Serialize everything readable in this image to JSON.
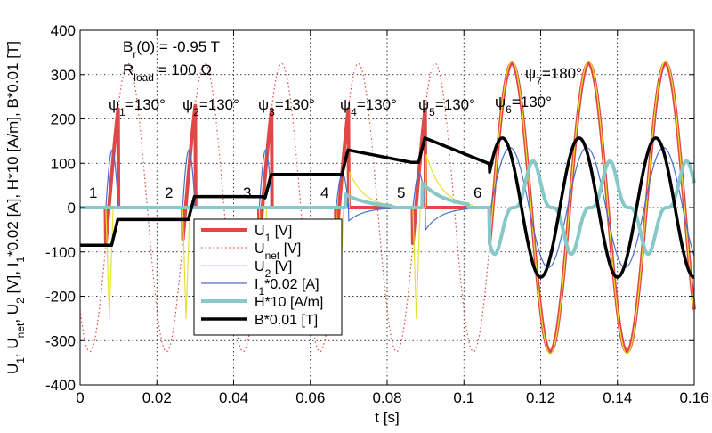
{
  "chart_data": {
    "type": "line",
    "xlabel": "t [s]",
    "ylabel": "U1, Unet, U2 [V], I1*0.02 [A], H*10 [A/m], B*0.01 [T]",
    "ylabel_parts": [
      {
        "text": "U",
        "sub": "1"
      },
      {
        "text": ", U",
        "sub": "net"
      },
      {
        "text": ", U",
        "sub": "2"
      },
      {
        "text": " [V], I",
        "sub": "1"
      },
      {
        "text": "*0.02 [A], H*10 [A/m], B*0.01 [T]",
        "sub": ""
      }
    ],
    "xlim": [
      0,
      0.16
    ],
    "ylim": [
      -400,
      400
    ],
    "xticks": [
      "0",
      "0.02",
      "0.04",
      "0.06",
      "0.08",
      "0.1",
      "0.12",
      "0.14",
      "0.16"
    ],
    "yticks": [
      "-400",
      "-300",
      "-200",
      "-100",
      "0",
      "100",
      "200",
      "300",
      "400"
    ],
    "grid": true,
    "legend_position": "lower-left",
    "annotations": {
      "br": {
        "main": "B",
        "sub": "r",
        "rest": "(0) = -0.95 T"
      },
      "rload": {
        "main": "R",
        "sub": "load",
        "rest": " = 100 Ω"
      },
      "psi": [
        {
          "main": "ψ",
          "sub": "1",
          "rest": "=130°"
        },
        {
          "main": "ψ",
          "sub": "2",
          "rest": "=130°"
        },
        {
          "main": "ψ",
          "sub": "3",
          "rest": "=130°"
        },
        {
          "main": "ψ",
          "sub": "4",
          "rest": "=130°"
        },
        {
          "main": "ψ",
          "sub": "5",
          "rest": "=130°"
        },
        {
          "main": "ψ",
          "sub": "6",
          "rest": "=130°"
        },
        {
          "main": "ψ",
          "sub": "7",
          "rest": "=180°"
        }
      ],
      "pulse_numbers": [
        "1",
        "2",
        "3",
        "4",
        "5",
        "6"
      ]
    },
    "pulse_times": [
      0.0067,
      0.0267,
      0.0467,
      0.0667,
      0.0867,
      0.1067
    ],
    "continuous_from": 0.1067,
    "amplitude_U1": 325,
    "amplitude_U2": 330,
    "I1_peak": 130,
    "H_peak": 105,
    "B_levels": [
      -85,
      -27,
      22,
      73,
      102,
      100
    ],
    "B_peak_after_pulse": [
      -27,
      25,
      75,
      130,
      157,
      157
    ],
    "B_steady_amplitude": 157,
    "series": [
      {
        "name": "U1 [V]",
        "legend": {
          "main": "U",
          "sub": "1",
          "rest": " [V]"
        },
        "color": "#e04848",
        "width": 4,
        "style": "solid"
      },
      {
        "name": "Unet [V]",
        "legend": {
          "main": "U",
          "sub": "net",
          "rest": " [V]"
        },
        "color": "#e04848",
        "width": 1.2,
        "style": "dotted"
      },
      {
        "name": "U2 [V]",
        "legend": {
          "main": "U",
          "sub": "2",
          "rest": " [V]"
        },
        "color": "#e8e030",
        "width": 1.2,
        "style": "solid"
      },
      {
        "name": "I1*0.02 [A]",
        "legend": {
          "main": "I",
          "sub": "1",
          "rest": "*0.02 [A]"
        },
        "color": "#4a6ec8",
        "width": 1.2,
        "style": "solid"
      },
      {
        "name": "H*10 [A/m]",
        "legend": {
          "main": "H*10 [A/m]",
          "sub": "",
          "rest": ""
        },
        "color": "#88c8c8",
        "width": 4,
        "style": "solid"
      },
      {
        "name": "B*0.01 [T]",
        "legend": {
          "main": "B*0.01 [T]",
          "sub": "",
          "rest": ""
        },
        "color": "#000000",
        "width": 3.5,
        "style": "solid"
      }
    ]
  }
}
